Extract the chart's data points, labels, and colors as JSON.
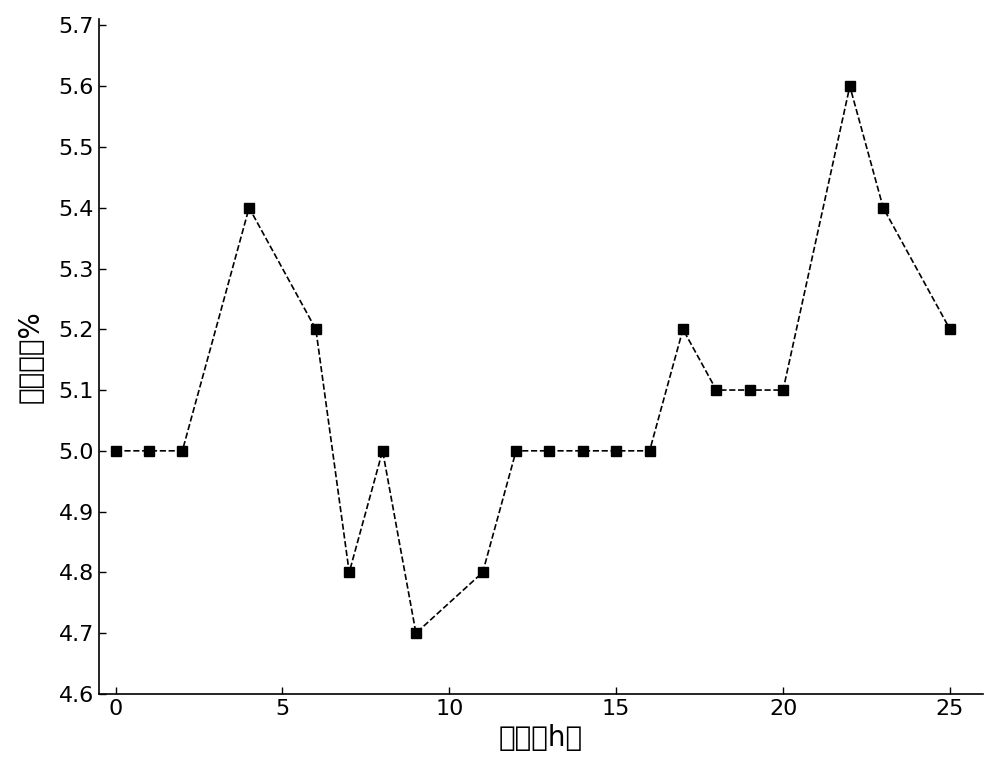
{
  "x": [
    0,
    1,
    2,
    4,
    6,
    7,
    8,
    9,
    11,
    12,
    13,
    14,
    15,
    16,
    17,
    18,
    19,
    20,
    22,
    23,
    25
  ],
  "y": [
    5.0,
    5.0,
    5.0,
    5.4,
    5.2,
    4.8,
    5.0,
    4.7,
    4.8,
    5.0,
    5.0,
    5.0,
    5.0,
    5.0,
    5.2,
    5.1,
    5.1,
    5.1,
    5.6,
    5.4,
    5.2
  ],
  "xlim": [
    -0.5,
    26
  ],
  "ylim": [
    4.6,
    5.71
  ],
  "xticks": [
    0,
    5,
    10,
    15,
    20,
    25
  ],
  "yticks": [
    4.6,
    4.7,
    4.8,
    4.9,
    5.0,
    5.1,
    5.2,
    5.3,
    5.4,
    5.5,
    5.6,
    5.7
  ],
  "xlabel": "时间（h）",
  "ylabel": "残糖数値%",
  "line_color": "#000000",
  "marker": "s",
  "marker_size": 7,
  "marker_color": "#000000",
  "line_style": "--",
  "line_width": 1.2,
  "background_color": "#ffffff",
  "xlabel_fontsize": 20,
  "ylabel_fontsize": 20,
  "tick_fontsize": 16
}
